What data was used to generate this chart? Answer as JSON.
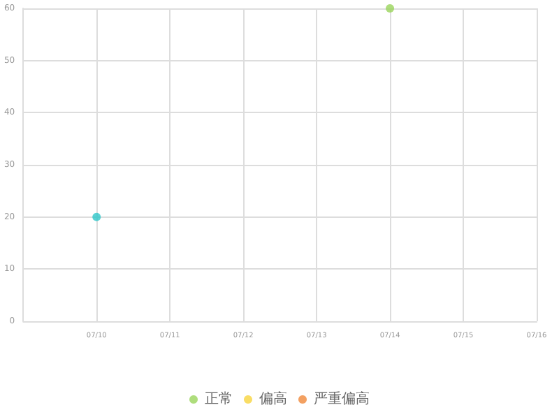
{
  "chart_data": {
    "type": "scatter",
    "x": [
      "--07-10",
      "--07-14"
    ],
    "series": [
      {
        "name": "正常",
        "color": "#9ad45b",
        "values": [
          null,
          60
        ]
      },
      {
        "name": "偏高",
        "color": "#f7d53f",
        "values": [
          null,
          null
        ]
      },
      {
        "name": "严重偏高",
        "color": "#f0883a",
        "values": [
          null,
          null
        ]
      },
      {
        "color": "#2ec7c9",
        "values": [
          20,
          null
        ]
      }
    ],
    "xlim": [
      "--07-09",
      "--07-16"
    ],
    "xticks": [
      {
        "value": "--07-10",
        "label": "07/10"
      },
      {
        "value": "--07-11",
        "label": "07/11"
      },
      {
        "value": "--07-12",
        "label": "07/12"
      },
      {
        "value": "--07-13",
        "label": "07/13"
      },
      {
        "value": "--07-14",
        "label": "07/14"
      },
      {
        "value": "--07-15",
        "label": "07/15"
      },
      {
        "value": "--07-16",
        "label": "07/16"
      }
    ],
    "ylim": [
      0,
      60
    ],
    "yticks": [
      0,
      10,
      20,
      30,
      40,
      50,
      60
    ],
    "grid": true,
    "legend": "bottom",
    "marker": "circle"
  }
}
